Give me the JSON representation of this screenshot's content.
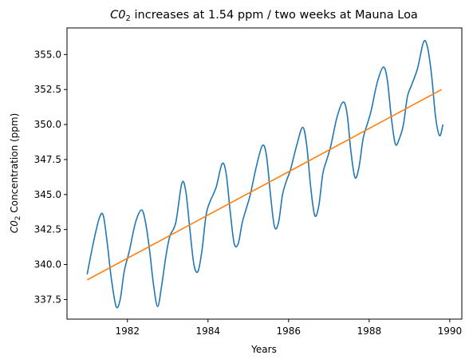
{
  "chart_data": {
    "type": "line",
    "title": {
      "pre": "C0",
      "sub": "2",
      "post": " increases at 1.54 ppm / two weeks at Mauna Loa"
    },
    "xlabel": "Years",
    "ylabel": {
      "pre": "C0",
      "sub": "2",
      "post": " Concentration (ppm)"
    },
    "xlim": [
      1980.5,
      1990.3
    ],
    "ylim": [
      336.1,
      356.9
    ],
    "xticks": [
      1982,
      1984,
      1986,
      1988,
      1990
    ],
    "yticks": [
      337.5,
      340.0,
      342.5,
      345.0,
      347.5,
      350.0,
      352.5,
      355.0
    ],
    "ytick_labels": [
      "337.5",
      "340.0",
      "342.5",
      "345.0",
      "347.5",
      "350.0",
      "352.5",
      "355.0"
    ],
    "grid": false,
    "series": [
      {
        "color": "#1f77b4",
        "x": [
          1981.0,
          1981.15,
          1981.3,
          1981.4,
          1981.5,
          1981.6,
          1981.72,
          1981.82,
          1981.92,
          1982.05,
          1982.2,
          1982.35,
          1982.45,
          1982.55,
          1982.65,
          1982.75,
          1982.85,
          1982.95,
          1983.05,
          1983.2,
          1983.35,
          1983.45,
          1983.55,
          1983.65,
          1983.75,
          1983.85,
          1983.95,
          1984.05,
          1984.2,
          1984.35,
          1984.45,
          1984.55,
          1984.65,
          1984.75,
          1984.85,
          1984.95,
          1985.05,
          1985.2,
          1985.35,
          1985.45,
          1985.55,
          1985.65,
          1985.75,
          1985.85,
          1985.95,
          1986.05,
          1986.2,
          1986.35,
          1986.45,
          1986.55,
          1986.65,
          1986.75,
          1986.85,
          1986.95,
          1987.05,
          1987.2,
          1987.35,
          1987.45,
          1987.55,
          1987.65,
          1987.75,
          1987.85,
          1987.95,
          1988.05,
          1988.2,
          1988.35,
          1988.45,
          1988.55,
          1988.65,
          1988.75,
          1988.85,
          1988.95,
          1989.05,
          1989.2,
          1989.35,
          1989.45,
          1989.55,
          1989.65,
          1989.75,
          1989.83
        ],
        "y": [
          339.3,
          341.5,
          343.3,
          343.5,
          341.5,
          339.0,
          337.0,
          337.5,
          339.5,
          341.0,
          343.0,
          343.9,
          343.0,
          341.0,
          338.5,
          337.0,
          338.5,
          340.5,
          342.0,
          343.0,
          345.8,
          345.2,
          342.5,
          340.0,
          339.5,
          341.0,
          343.5,
          344.5,
          345.5,
          347.2,
          346.5,
          343.8,
          341.5,
          341.5,
          343.0,
          344.0,
          345.0,
          347.0,
          348.5,
          347.8,
          345.0,
          342.7,
          343.0,
          345.0,
          346.0,
          346.8,
          348.5,
          349.8,
          348.5,
          345.5,
          343.5,
          344.2,
          346.5,
          347.5,
          348.5,
          350.5,
          351.6,
          350.8,
          348.0,
          346.2,
          347.0,
          349.0,
          350.0,
          351.0,
          353.0,
          354.1,
          353.2,
          350.5,
          348.6,
          349.0,
          350.0,
          352.0,
          352.8,
          354.0,
          355.9,
          355.5,
          353.5,
          350.5,
          349.2,
          350.0
        ]
      },
      {
        "color": "#ff7f0e",
        "x": [
          1981.0,
          1989.8
        ],
        "y": [
          338.9,
          352.5
        ]
      }
    ]
  }
}
